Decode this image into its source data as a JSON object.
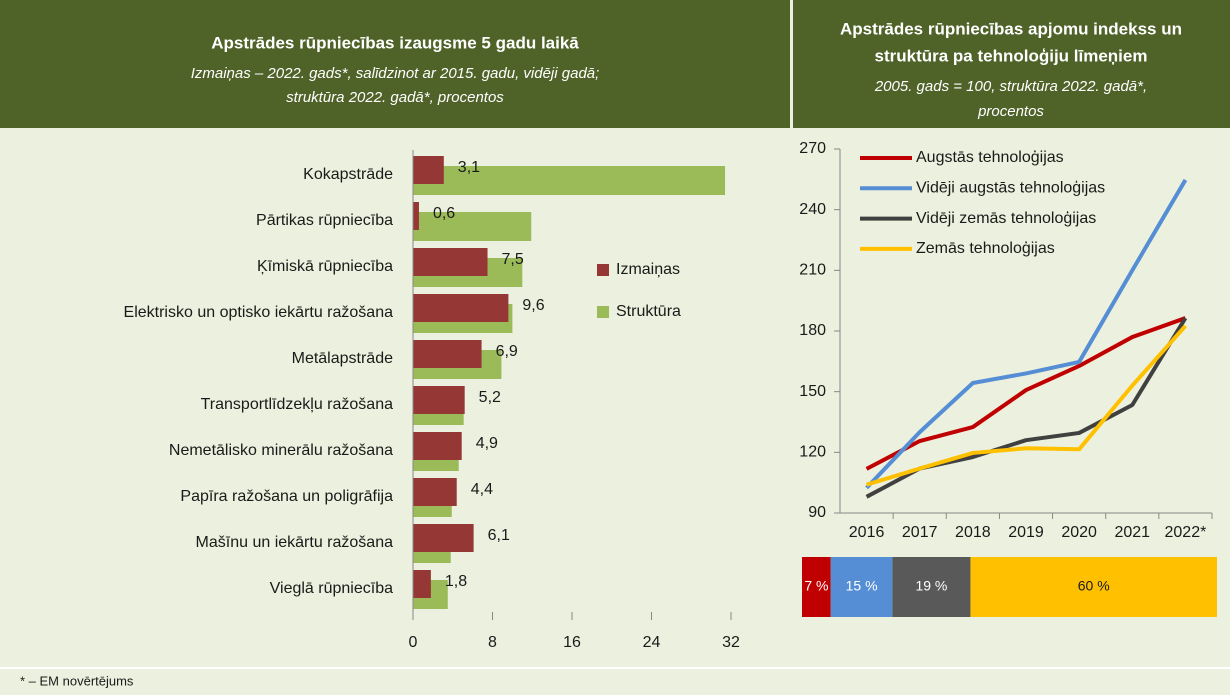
{
  "chart_data": [
    {
      "type": "hbar",
      "title": "Apstrādes rūpniecības izaugsme 5 gadu laikā",
      "subtitle": [
        "Izmaiņas – 2022. gads*, salīdzinot ar 2015. gadu, vidēji gadā;",
        "struktūra 2022. gadā*, procentos"
      ],
      "categories": [
        "Kokapstrāde",
        "Pārtikas rūpniecība",
        "Ķīmiskā rūpniecība",
        "Elektrisko un optisko iekārtu ražošana",
        "Metālapstrāde",
        "Transportlīdzekļu ražošana",
        "Nemetālisko minerālu ražošana",
        "Papīra ražošana un poligrāfija",
        "Mašīnu un iekārtu ražošana",
        "Vieglā rūpniecība"
      ],
      "series": [
        {
          "name": "Izmaiņas",
          "color": "#953735",
          "values": [
            3.1,
            0.6,
            7.5,
            9.6,
            6.9,
            5.2,
            4.9,
            4.4,
            6.1,
            1.8
          ],
          "value_labels": [
            "3,1",
            "0,6",
            "7,5",
            "9,6",
            "6,9",
            "5,2",
            "4,9",
            "4,4",
            "6,1",
            "1,8"
          ]
        },
        {
          "name": "Struktūra",
          "color": "#9bbb59",
          "values": [
            31.4,
            11.9,
            11.0,
            10.0,
            8.9,
            5.1,
            4.6,
            3.9,
            3.8,
            3.5
          ]
        }
      ],
      "xlim": [
        0,
        32
      ],
      "xticks": [
        0,
        8,
        16,
        24,
        32
      ],
      "grid": false,
      "legend": "right"
    },
    {
      "type": "line",
      "title": [
        "Apstrādes rūpniecības apjomu indekss un",
        "struktūra pa tehnoloģiju līmeņiem"
      ],
      "subtitle": [
        "2005. gads = 100, struktūra 2022. gadā*,",
        "procentos"
      ],
      "categories": [
        "2016",
        "2017",
        "2018",
        "2019",
        "2020",
        "2021",
        "2022*"
      ],
      "series": [
        {
          "name": "Augstās tehnoloģijas",
          "color": "#c00000",
          "values": [
            111.8,
            125.6,
            132.5,
            150.8,
            162.7,
            177,
            186.4
          ]
        },
        {
          "name": "Vidēji augstās tehnoloģijas",
          "color": "#558ed5",
          "values": [
            102.4,
            130,
            154.3,
            159,
            164.7,
            210,
            254.7
          ]
        },
        {
          "name": "Vidēji zemās tehnoloģijas",
          "color": "#404040",
          "values": [
            98,
            112,
            117.7,
            126,
            129.6,
            143.4,
            186.4
          ]
        },
        {
          "name": "Zemās tehnoloģijas",
          "color": "#ffc000",
          "values": [
            104,
            112,
            119.7,
            122,
            121.5,
            153,
            182.5
          ]
        }
      ],
      "ylim": [
        90,
        270
      ],
      "yticks": [
        90,
        120,
        150,
        180,
        210,
        240,
        270
      ],
      "grid": false,
      "legend": "top-left"
    },
    {
      "type": "share",
      "values": [
        7,
        15,
        19,
        60
      ],
      "value_labels": [
        "7 %",
        "15 %",
        "19 %",
        "60 %"
      ],
      "colors": [
        "#c00000",
        "#558ed5",
        "#595959",
        "#ffc000"
      ]
    }
  ],
  "footnote": "* – EM novērtējums"
}
